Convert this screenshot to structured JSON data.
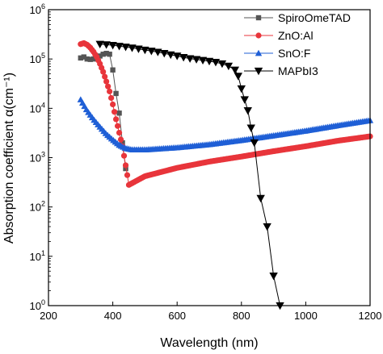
{
  "chart_data": {
    "type": "line",
    "title": "",
    "xlabel": "Wavelength (nm)",
    "ylabel": "Absorption coefficient α(cm⁻¹)",
    "xlim": [
      200,
      1200
    ],
    "ylim": [
      1,
      1000000
    ],
    "yscale": "log",
    "grid": false,
    "legend": "top-right",
    "x_ticks": [
      200,
      400,
      600,
      800,
      1000,
      1200
    ],
    "y_ticks": [
      {
        "value": 1,
        "base": "10",
        "exp": "0"
      },
      {
        "value": 10,
        "base": "10",
        "exp": "1"
      },
      {
        "value": 100,
        "base": "10",
        "exp": "2"
      },
      {
        "value": 1000,
        "base": "10",
        "exp": "3"
      },
      {
        "value": 10000,
        "base": "10",
        "exp": "4"
      },
      {
        "value": 100000,
        "base": "10",
        "exp": "5"
      },
      {
        "value": 1000000,
        "base": "10",
        "exp": "6"
      }
    ],
    "series": [
      {
        "name": "SpiroOmeTAD",
        "color": "#555555",
        "marker": "square",
        "x": [
          300,
          310,
          320,
          330,
          340,
          350,
          360,
          370,
          380,
          390,
          400,
          410,
          420,
          430,
          440
        ],
        "y": [
          105000,
          110000,
          100000,
          98000,
          100000,
          105000,
          115000,
          125000,
          130000,
          125000,
          60000,
          20000,
          8000,
          2000,
          600
        ]
      },
      {
        "name": "ZnO:Al",
        "color": "#e8353b",
        "marker": "circle",
        "x": [
          300,
          310,
          320,
          330,
          340,
          350,
          360,
          370,
          380,
          390,
          400,
          410,
          420,
          430,
          440,
          450,
          500,
          600,
          700,
          800,
          900,
          1000,
          1100,
          1200
        ],
        "y": [
          200000,
          210000,
          195000,
          170000,
          140000,
          110000,
          80000,
          55000,
          35000,
          22000,
          12000,
          6000,
          3200,
          1700,
          700,
          280,
          420,
          620,
          830,
          1050,
          1350,
          1700,
          2200,
          2700
        ]
      },
      {
        "name": "SnO:F",
        "color": "#1f5fd6",
        "marker": "triangle-up",
        "x": [
          300,
          320,
          340,
          360,
          380,
          400,
          420,
          440,
          460,
          500,
          600,
          700,
          800,
          900,
          1000,
          1100,
          1200
        ],
        "y": [
          15000,
          9000,
          6000,
          4200,
          3000,
          2300,
          1800,
          1550,
          1450,
          1450,
          1600,
          1850,
          2250,
          2800,
          3500,
          4500,
          5700
        ]
      },
      {
        "name": "MAPbI3",
        "color": "#000000",
        "marker": "triangle-down",
        "x": [
          360,
          380,
          400,
          420,
          440,
          460,
          480,
          500,
          520,
          540,
          560,
          580,
          600,
          620,
          640,
          660,
          680,
          700,
          720,
          740,
          760,
          780,
          790,
          800,
          810,
          820,
          830,
          840,
          860,
          880,
          900,
          920
        ],
        "y": [
          200000,
          195000,
          190000,
          182000,
          175000,
          168000,
          160000,
          152000,
          145000,
          138000,
          130000,
          122000,
          115000,
          108000,
          102000,
          98000,
          94000,
          90000,
          86000,
          80000,
          72000,
          60000,
          45000,
          25000,
          15000,
          9000,
          4000,
          2000,
          150,
          40,
          4,
          1
        ]
      }
    ]
  }
}
